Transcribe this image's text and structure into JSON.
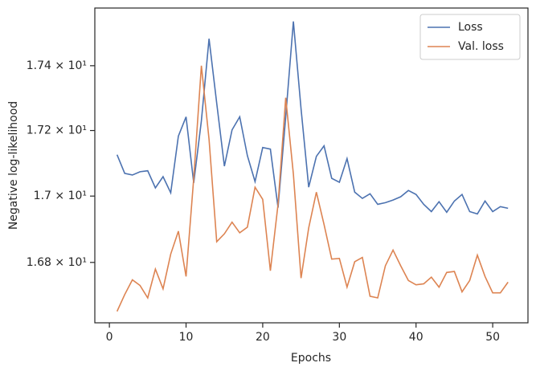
{
  "chart_data": {
    "type": "line",
    "xlabel": "Epochs",
    "ylabel": "Negative log-likelihood",
    "x": [
      1,
      2,
      3,
      4,
      5,
      6,
      7,
      8,
      9,
      10,
      11,
      12,
      13,
      14,
      15,
      16,
      17,
      18,
      19,
      20,
      21,
      22,
      23,
      24,
      25,
      26,
      27,
      28,
      29,
      30,
      31,
      32,
      33,
      34,
      35,
      36,
      37,
      38,
      39,
      40,
      41,
      42,
      43,
      44,
      45,
      46,
      47,
      48,
      49,
      50,
      51,
      52
    ],
    "series": [
      {
        "name": "Loss",
        "color": "#4c72b0",
        "values": [
          17.126,
          17.069,
          17.064,
          17.074,
          17.077,
          17.025,
          17.059,
          17.01,
          17.183,
          17.242,
          17.04,
          17.23,
          17.484,
          17.284,
          17.091,
          17.202,
          17.242,
          17.123,
          17.044,
          17.148,
          17.143,
          16.965,
          17.242,
          17.538,
          17.267,
          17.027,
          17.121,
          17.153,
          17.054,
          17.042,
          17.114,
          17.012,
          16.993,
          17.007,
          16.975,
          16.98,
          16.988,
          16.998,
          17.017,
          17.005,
          16.975,
          16.953,
          16.983,
          16.951,
          16.985,
          17.005,
          16.953,
          16.946,
          16.985,
          16.953,
          16.968,
          16.963
        ]
      },
      {
        "name": "Val. loss",
        "color": "#dd8452",
        "values": [
          16.654,
          16.704,
          16.748,
          16.731,
          16.694,
          16.78,
          16.721,
          16.825,
          16.894,
          16.758,
          17.054,
          17.4,
          17.173,
          16.862,
          16.886,
          16.921,
          16.889,
          16.906,
          17.027,
          16.99,
          16.775,
          16.975,
          17.301,
          17.067,
          16.753,
          16.904,
          17.012,
          16.914,
          16.81,
          16.812,
          16.726,
          16.802,
          16.815,
          16.699,
          16.694,
          16.79,
          16.837,
          16.79,
          16.746,
          16.733,
          16.736,
          16.756,
          16.726,
          16.77,
          16.773,
          16.712,
          16.746,
          16.822,
          16.758,
          16.709,
          16.709,
          16.741
        ]
      }
    ],
    "xlim": [
      -1.9,
      54.6
    ],
    "xticks": [
      0,
      10,
      20,
      30,
      40,
      50
    ],
    "ylim": [
      16.62,
      17.58
    ],
    "ylog": true,
    "yticks": [
      {
        "value": 16.8,
        "label": "1.68 × 10¹"
      },
      {
        "value": 17.0,
        "label": "1.7 × 10¹"
      },
      {
        "value": 17.2,
        "label": "1.72 × 10¹"
      },
      {
        "value": 17.4,
        "label": "1.74 × 10¹"
      }
    ],
    "grid": false,
    "legend": "upper right"
  }
}
